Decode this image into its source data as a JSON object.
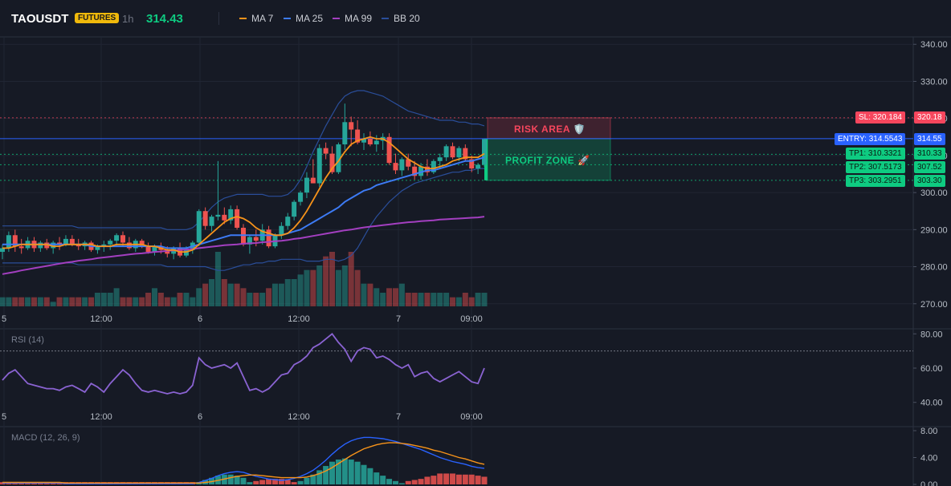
{
  "header": {
    "symbol": "TAOUSDT",
    "badge": "FUTURES",
    "timeframe": "1h",
    "last_price": "314.43",
    "legend": [
      {
        "label": "MA 7",
        "color": "#f7931a"
      },
      {
        "label": "MA 25",
        "color": "#3d7bf5"
      },
      {
        "label": "MA 99",
        "color": "#a33fc0"
      },
      {
        "label": "BB 20",
        "color": "#2a4e9a"
      }
    ]
  },
  "price_axis": [
    "340.00",
    "330.00",
    "320.00",
    "310.00",
    "300.00",
    "290.00",
    "280.00",
    "270.00"
  ],
  "time_axis": [
    "5",
    "12:00",
    "6",
    "12:00",
    "7",
    "09:00"
  ],
  "trade_levels": {
    "sl": {
      "label": "SL: 320.184",
      "axis": "320.18",
      "value": 320.184,
      "color": "#f6465d"
    },
    "entry": {
      "label": "ENTRY: 314.5543",
      "axis": "314.55",
      "value": 314.5543,
      "color": "#2962ff"
    },
    "tp": [
      {
        "label": "TP1: 310.3321",
        "axis": "310.33",
        "value": 310.3321
      },
      {
        "label": "TP2: 307.5173",
        "axis": "307.52",
        "value": 307.5173
      },
      {
        "label": "TP3: 303.2951",
        "axis": "303.30",
        "value": 303.2951
      }
    ],
    "tp_color": "#0ecb81",
    "risk_label": "RISK AREA 🛡️",
    "profit_label": "PROFIT ZONE 🚀"
  },
  "rsi": {
    "label": "RSI (14)",
    "axis": [
      "80.00",
      "60.00",
      "40.00"
    ],
    "overbought": 70,
    "color": "#8a63d2"
  },
  "macd": {
    "label": "MACD (12, 26, 9)",
    "axis": [
      "8.00",
      "4.00",
      "0.00"
    ],
    "macd_color": "#2962ff",
    "signal_color": "#f7931a"
  },
  "chart_data": {
    "type": "candlestick",
    "candles": [
      [
        284.0,
        286.0,
        282.0,
        285.0
      ],
      [
        285.0,
        289.5,
        284.0,
        288.5
      ],
      [
        288.5,
        290.0,
        284.0,
        285.5
      ],
      [
        285.5,
        287.5,
        283.5,
        285.0
      ],
      [
        285.0,
        288.0,
        284.5,
        287.0
      ],
      [
        287.0,
        288.0,
        284.0,
        285.0
      ],
      [
        285.0,
        287.0,
        284.0,
        286.5
      ],
      [
        286.5,
        287.5,
        284.5,
        285.0
      ],
      [
        285.0,
        287.0,
        283.5,
        286.5
      ],
      [
        286.5,
        288.0,
        284.5,
        286.0
      ],
      [
        286.0,
        288.5,
        285.5,
        287.5
      ],
      [
        287.5,
        288.5,
        285.5,
        286.0
      ],
      [
        286.0,
        287.5,
        284.5,
        285.5
      ],
      [
        285.5,
        287.0,
        284.5,
        286.5
      ],
      [
        286.5,
        287.0,
        284.0,
        284.5
      ],
      [
        284.5,
        286.0,
        283.5,
        285.5
      ],
      [
        285.5,
        287.0,
        284.0,
        286.0
      ],
      [
        286.0,
        287.5,
        284.5,
        287.0
      ],
      [
        287.0,
        289.0,
        285.5,
        288.5
      ],
      [
        288.5,
        289.5,
        285.5,
        286.5
      ],
      [
        286.5,
        288.0,
        284.5,
        285.0
      ],
      [
        285.0,
        287.5,
        284.0,
        287.0
      ],
      [
        287.0,
        287.5,
        285.0,
        285.5
      ],
      [
        285.5,
        286.5,
        283.5,
        284.0
      ],
      [
        284.0,
        286.0,
        283.0,
        285.5
      ],
      [
        285.5,
        286.5,
        283.5,
        284.5
      ],
      [
        284.5,
        285.5,
        282.5,
        283.5
      ],
      [
        283.5,
        285.5,
        282.0,
        285.0
      ],
      [
        285.0,
        286.5,
        282.5,
        283.0
      ],
      [
        283.0,
        285.5,
        282.5,
        284.5
      ],
      [
        284.5,
        287.0,
        283.5,
        286.5
      ],
      [
        286.5,
        295.5,
        285.5,
        295.0
      ],
      [
        295.0,
        296.0,
        290.0,
        291.0
      ],
      [
        291.0,
        294.0,
        289.5,
        293.5
      ],
      [
        293.5,
        308.5,
        292.5,
        294.0
      ],
      [
        294.0,
        296.0,
        291.5,
        292.5
      ],
      [
        292.5,
        296.5,
        291.5,
        295.5
      ],
      [
        295.5,
        296.5,
        290.0,
        290.5
      ],
      [
        290.5,
        291.5,
        285.5,
        286.0
      ],
      [
        286.0,
        288.5,
        283.5,
        288.0
      ],
      [
        288.0,
        290.0,
        285.5,
        287.0
      ],
      [
        287.0,
        291.5,
        286.0,
        290.0
      ],
      [
        290.0,
        291.0,
        285.0,
        285.5
      ],
      [
        285.5,
        289.0,
        285.0,
        288.5
      ],
      [
        288.5,
        292.0,
        287.5,
        291.0
      ],
      [
        291.0,
        294.5,
        290.0,
        293.5
      ],
      [
        293.5,
        298.0,
        292.5,
        297.5
      ],
      [
        297.5,
        300.5,
        296.5,
        300.0
      ],
      [
        300.0,
        305.5,
        298.5,
        304.0
      ],
      [
        304.0,
        309.0,
        302.5,
        302.5
      ],
      [
        302.5,
        313.0,
        301.5,
        312.0
      ],
      [
        312.0,
        313.5,
        309.0,
        310.5
      ],
      [
        310.5,
        312.5,
        305.0,
        305.5
      ],
      [
        305.5,
        313.5,
        305.0,
        313.0
      ],
      [
        313.0,
        324.0,
        311.5,
        319.0
      ],
      [
        319.0,
        320.5,
        312.5,
        317.0
      ],
      [
        317.0,
        319.5,
        313.0,
        313.5
      ],
      [
        313.5,
        316.0,
        311.5,
        314.5
      ],
      [
        314.5,
        316.5,
        312.5,
        313.0
      ],
      [
        313.0,
        315.5,
        311.0,
        314.0
      ],
      [
        314.0,
        316.0,
        311.5,
        315.0
      ],
      [
        315.0,
        316.0,
        307.5,
        308.0
      ],
      [
        308.0,
        310.5,
        305.0,
        306.0
      ],
      [
        306.0,
        309.5,
        304.5,
        309.0
      ],
      [
        309.0,
        310.5,
        306.0,
        307.0
      ],
      [
        307.0,
        308.5,
        303.5,
        304.5
      ],
      [
        304.5,
        308.0,
        303.5,
        307.0
      ],
      [
        307.0,
        309.0,
        304.5,
        305.5
      ],
      [
        305.5,
        309.0,
        305.0,
        308.5
      ],
      [
        308.5,
        310.5,
        306.5,
        309.5
      ],
      [
        309.5,
        313.0,
        308.5,
        312.5
      ],
      [
        312.5,
        313.5,
        309.0,
        309.5
      ],
      [
        309.5,
        312.5,
        308.5,
        312.0
      ],
      [
        312.0,
        313.0,
        308.5,
        309.0
      ],
      [
        309.0,
        310.0,
        305.5,
        306.5
      ],
      [
        306.5,
        308.0,
        305.0,
        307.5
      ],
      [
        307.5,
        314.5,
        307.0,
        314.43
      ]
    ],
    "volume": [
      2,
      2,
      2,
      2,
      2,
      2,
      2,
      2,
      1,
      2,
      2,
      2,
      2,
      2,
      2,
      3,
      3,
      3,
      4,
      2,
      2,
      2,
      2,
      3,
      4,
      3,
      2,
      2,
      3,
      3,
      2,
      4,
      5,
      6,
      12,
      6,
      5,
      5,
      4,
      3,
      3,
      3,
      4,
      5,
      5,
      6,
      6,
      7,
      8,
      8,
      9,
      11,
      12,
      8,
      9,
      12,
      8,
      5,
      5,
      4,
      3,
      4,
      4,
      5,
      3,
      3,
      3,
      3,
      3,
      3,
      3,
      2,
      2,
      3,
      2,
      3,
      3
    ],
    "ma7": [
      285.0,
      285.0,
      285.5,
      286.0,
      286.0,
      286.0,
      286.0,
      286.0,
      285.5,
      285.5,
      286.0,
      286.0,
      286.0,
      286.0,
      286.0,
      285.5,
      285.5,
      285.5,
      286.0,
      286.0,
      286.0,
      286.0,
      286.0,
      285.5,
      285.5,
      285.0,
      284.5,
      284.5,
      284.0,
      284.0,
      284.5,
      286.0,
      287.5,
      289.0,
      290.5,
      292.0,
      293.0,
      293.5,
      293.0,
      292.0,
      290.5,
      289.5,
      289.0,
      288.5,
      288.5,
      289.0,
      290.5,
      292.5,
      295.0,
      298.0,
      301.0,
      304.0,
      306.5,
      308.5,
      311.0,
      313.0,
      314.0,
      314.5,
      315.0,
      314.5,
      314.5,
      313.5,
      312.0,
      310.5,
      309.0,
      308.0,
      307.0,
      306.5,
      306.5,
      307.0,
      307.5,
      308.5,
      309.0,
      309.5,
      309.5,
      309.5,
      310.5
    ],
    "ma25": [
      286.0,
      286.0,
      286.0,
      286.0,
      286.0,
      286.0,
      286.0,
      286.0,
      286.0,
      286.0,
      286.0,
      286.0,
      286.0,
      286.0,
      285.5,
      285.5,
      285.5,
      285.5,
      285.5,
      285.5,
      285.5,
      285.5,
      285.5,
      285.5,
      285.5,
      285.5,
      285.0,
      285.0,
      285.0,
      285.0,
      285.5,
      286.0,
      286.5,
      287.0,
      287.5,
      288.0,
      288.5,
      288.5,
      288.5,
      288.5,
      288.5,
      288.5,
      288.5,
      288.5,
      288.5,
      289.0,
      289.5,
      290.0,
      291.0,
      292.0,
      293.0,
      294.0,
      295.0,
      296.0,
      297.5,
      298.5,
      299.5,
      300.5,
      301.0,
      302.0,
      302.5,
      303.0,
      303.5,
      304.0,
      304.5,
      305.0,
      305.5,
      306.0,
      306.0,
      306.5,
      307.0,
      307.5,
      308.0,
      308.5,
      308.5,
      309.0,
      309.5
    ],
    "ma99": [
      278.0,
      278.3,
      278.6,
      279.0,
      279.3,
      279.6,
      279.9,
      280.2,
      280.5,
      280.8,
      281.1,
      281.3,
      281.6,
      281.8,
      282.0,
      282.3,
      282.5,
      282.7,
      282.9,
      283.1,
      283.3,
      283.5,
      283.6,
      283.8,
      284.0,
      284.1,
      284.3,
      284.4,
      284.5,
      284.6,
      284.8,
      285.0,
      285.2,
      285.4,
      285.6,
      285.8,
      285.9,
      286.0,
      286.2,
      286.3,
      286.4,
      286.6,
      286.7,
      286.9,
      287.0,
      287.2,
      287.5,
      287.7,
      288.0,
      288.3,
      288.6,
      288.9,
      289.2,
      289.5,
      289.8,
      290.0,
      290.3,
      290.6,
      290.8,
      291.0,
      291.2,
      291.4,
      291.6,
      291.8,
      292.0,
      292.1,
      292.3,
      292.4,
      292.5,
      292.7,
      292.8,
      292.9,
      293.0,
      293.1,
      293.2,
      293.3,
      293.5
    ],
    "bb_upper": [
      291.0,
      291.0,
      291.0,
      291.0,
      291.0,
      291.0,
      291.0,
      291.0,
      291.0,
      291.0,
      291.0,
      291.0,
      290.5,
      290.5,
      290.5,
      290.5,
      290.5,
      290.5,
      290.5,
      290.5,
      290.5,
      290.5,
      290.5,
      290.5,
      290.5,
      290.5,
      290.0,
      290.0,
      290.0,
      290.0,
      290.5,
      292.0,
      294.0,
      296.0,
      297.5,
      298.5,
      299.0,
      299.5,
      299.5,
      299.5,
      299.5,
      299.5,
      299.0,
      299.0,
      299.0,
      299.5,
      301.0,
      303.5,
      307.0,
      311.0,
      314.5,
      318.0,
      321.0,
      324.0,
      326.0,
      327.0,
      327.5,
      327.5,
      327.0,
      326.5,
      326.0,
      325.0,
      324.0,
      323.0,
      322.0,
      321.5,
      321.0,
      320.5,
      320.0,
      319.5,
      319.5,
      319.5,
      319.0,
      319.0,
      318.5,
      318.5,
      318.0
    ],
    "bb_lower": [
      281.0,
      281.0,
      281.0,
      281.0,
      281.0,
      281.0,
      281.0,
      281.0,
      281.0,
      281.0,
      281.0,
      281.0,
      280.5,
      280.5,
      280.5,
      280.5,
      280.5,
      280.5,
      280.5,
      280.5,
      280.5,
      280.5,
      280.5,
      280.5,
      280.5,
      280.5,
      280.0,
      280.0,
      280.0,
      280.0,
      280.0,
      280.0,
      280.0,
      279.5,
      279.0,
      279.0,
      279.5,
      280.0,
      280.5,
      280.5,
      281.0,
      281.0,
      281.5,
      281.5,
      282.0,
      282.0,
      282.0,
      282.0,
      281.5,
      281.5,
      281.5,
      282.0,
      282.0,
      281.5,
      282.0,
      283.0,
      285.0,
      288.0,
      291.0,
      293.5,
      295.5,
      297.5,
      299.0,
      300.5,
      301.5,
      302.5,
      303.0,
      303.5,
      304.0,
      304.5,
      305.0,
      305.5,
      305.5,
      306.0,
      306.0,
      306.5,
      306.5
    ],
    "rsi": [
      53,
      57,
      59,
      55,
      51,
      50,
      49,
      48,
      48,
      47,
      49,
      50,
      48,
      46,
      51,
      49,
      46,
      51,
      55,
      59,
      56,
      51,
      47,
      46,
      47,
      46,
      45,
      46,
      45,
      46,
      50,
      66,
      62,
      60,
      61,
      62,
      60,
      63,
      55,
      47,
      48,
      46,
      48,
      52,
      56,
      57,
      62,
      64,
      67,
      72,
      74,
      77,
      80,
      75,
      71,
      64,
      70,
      72,
      71,
      66,
      67,
      65,
      62,
      60,
      62,
      55,
      57,
      58,
      54,
      52,
      54,
      56,
      58,
      55,
      52,
      51,
      60
    ],
    "macd": [
      0.2,
      0.2,
      0.2,
      0.2,
      0.2,
      0.2,
      0.2,
      0.2,
      0.2,
      0.2,
      0.1,
      0.1,
      0.1,
      0.1,
      0.1,
      0.1,
      0.1,
      0.1,
      0.1,
      0.1,
      0.1,
      0.1,
      0.1,
      0.1,
      0.1,
      0.1,
      0.1,
      0.1,
      0.1,
      0.1,
      0.1,
      0.3,
      0.6,
      0.9,
      1.3,
      1.6,
      1.8,
      1.9,
      1.8,
      1.5,
      1.2,
      1.0,
      0.8,
      0.7,
      0.6,
      0.7,
      0.9,
      1.2,
      1.6,
      2.1,
      2.8,
      3.6,
      4.5,
      5.3,
      6.0,
      6.5,
      6.8,
      7.0,
      7.0,
      6.9,
      6.8,
      6.6,
      6.4,
      6.1,
      5.8,
      5.5,
      5.2,
      4.8,
      4.4,
      4.0,
      3.7,
      3.4,
      3.2,
      3.0,
      2.7,
      2.5,
      2.4
    ],
    "macd_signal": [
      0.3,
      0.3,
      0.3,
      0.3,
      0.3,
      0.3,
      0.3,
      0.3,
      0.3,
      0.3,
      0.2,
      0.2,
      0.2,
      0.2,
      0.2,
      0.2,
      0.2,
      0.2,
      0.2,
      0.2,
      0.2,
      0.2,
      0.2,
      0.2,
      0.2,
      0.2,
      0.2,
      0.2,
      0.2,
      0.2,
      0.2,
      0.2,
      0.3,
      0.4,
      0.6,
      0.8,
      1.0,
      1.2,
      1.3,
      1.4,
      1.4,
      1.3,
      1.2,
      1.1,
      1.0,
      1.0,
      1.0,
      1.0,
      1.1,
      1.3,
      1.6,
      2.0,
      2.5,
      3.1,
      3.7,
      4.3,
      4.8,
      5.3,
      5.6,
      5.9,
      6.1,
      6.2,
      6.2,
      6.1,
      6.0,
      5.8,
      5.6,
      5.4,
      5.1,
      4.9,
      4.6,
      4.3,
      4.0,
      3.8,
      3.5,
      3.2,
      3.0
    ],
    "y_range_price": [
      268,
      342
    ],
    "y_range_rsi": [
      38,
      82
    ],
    "y_range_macd": [
      0,
      8
    ]
  }
}
